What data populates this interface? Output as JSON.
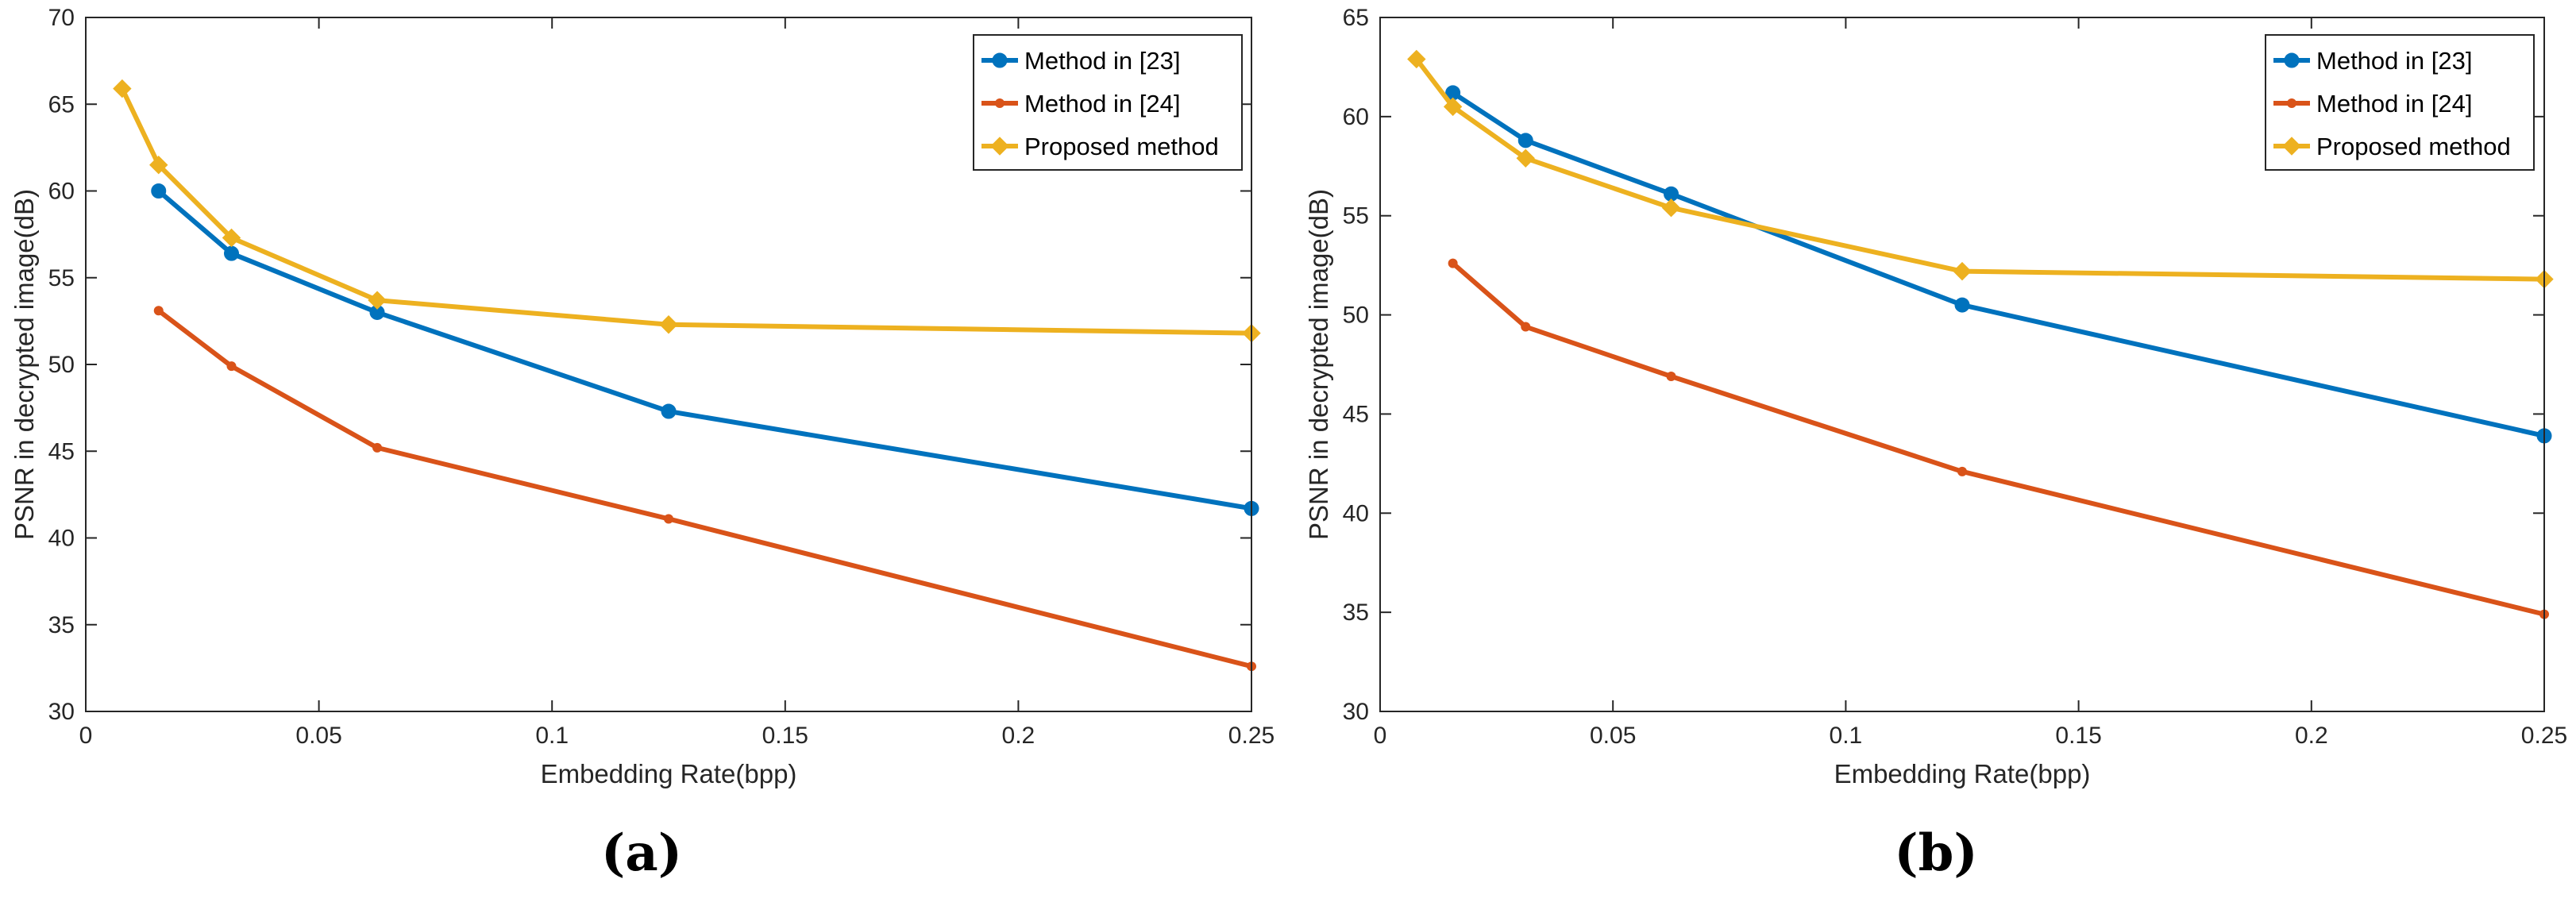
{
  "chart_data": [
    {
      "type": "line",
      "panel_label": "(a)",
      "xlabel": "Embedding Rate(bpp)",
      "ylabel": "PSNR in decrypted image(dB)",
      "xlim": [
        0,
        0.25
      ],
      "ylim": [
        30,
        70
      ],
      "xticks": [
        0,
        0.05,
        0.1,
        0.15,
        0.2,
        0.25
      ],
      "xtick_labels": [
        "0",
        "0.05",
        "0.1",
        "0.15",
        "0.2",
        "0.25"
      ],
      "yticks": [
        30,
        35,
        40,
        45,
        50,
        55,
        60,
        65,
        70
      ],
      "ytick_labels": [
        "30",
        "35",
        "40",
        "45",
        "50",
        "55",
        "60",
        "65",
        "70"
      ],
      "legend_position": "top-right",
      "series": [
        {
          "name": "Method in [23]",
          "color": "#0072BD",
          "marker": "circle",
          "x": [
            0.015625,
            0.03125,
            0.0625,
            0.125,
            0.25
          ],
          "values": [
            60.0,
            56.4,
            53.0,
            47.3,
            41.7
          ]
        },
        {
          "name": "Method in [24]",
          "color": "#D95319",
          "marker": "point",
          "x": [
            0.015625,
            0.03125,
            0.0625,
            0.125,
            0.25
          ],
          "values": [
            53.1,
            49.9,
            45.2,
            41.1,
            32.6
          ]
        },
        {
          "name": "Proposed method",
          "color": "#EDB120",
          "marker": "diamond",
          "x": [
            0.0078125,
            0.015625,
            0.03125,
            0.0625,
            0.125,
            0.25
          ],
          "values": [
            65.9,
            61.5,
            57.3,
            53.7,
            52.3,
            51.8
          ]
        }
      ]
    },
    {
      "type": "line",
      "panel_label": "(b)",
      "xlabel": "Embedding Rate(bpp)",
      "ylabel": "PSNR in decrypted image(dB)",
      "xlim": [
        0,
        0.25
      ],
      "ylim": [
        30,
        65
      ],
      "xticks": [
        0,
        0.05,
        0.1,
        0.15,
        0.2,
        0.25
      ],
      "xtick_labels": [
        "0",
        "0.05",
        "0.1",
        "0.15",
        "0.2",
        "0.25"
      ],
      "yticks": [
        30,
        35,
        40,
        45,
        50,
        55,
        60,
        65
      ],
      "ytick_labels": [
        "30",
        "35",
        "40",
        "45",
        "50",
        "55",
        "60",
        "65"
      ],
      "legend_position": "top-right",
      "series": [
        {
          "name": "Method in [23]",
          "color": "#0072BD",
          "marker": "circle",
          "x": [
            0.015625,
            0.03125,
            0.0625,
            0.125,
            0.25
          ],
          "values": [
            61.2,
            58.8,
            56.1,
            50.5,
            43.9
          ]
        },
        {
          "name": "Method in [24]",
          "color": "#D95319",
          "marker": "point",
          "x": [
            0.015625,
            0.03125,
            0.0625,
            0.125,
            0.25
          ],
          "values": [
            52.6,
            49.4,
            46.9,
            42.1,
            34.9
          ]
        },
        {
          "name": "Proposed method",
          "color": "#EDB120",
          "marker": "diamond",
          "x": [
            0.0078125,
            0.015625,
            0.03125,
            0.0625,
            0.125,
            0.25
          ],
          "values": [
            62.9,
            60.5,
            57.9,
            55.4,
            52.2,
            51.8
          ]
        }
      ]
    }
  ]
}
